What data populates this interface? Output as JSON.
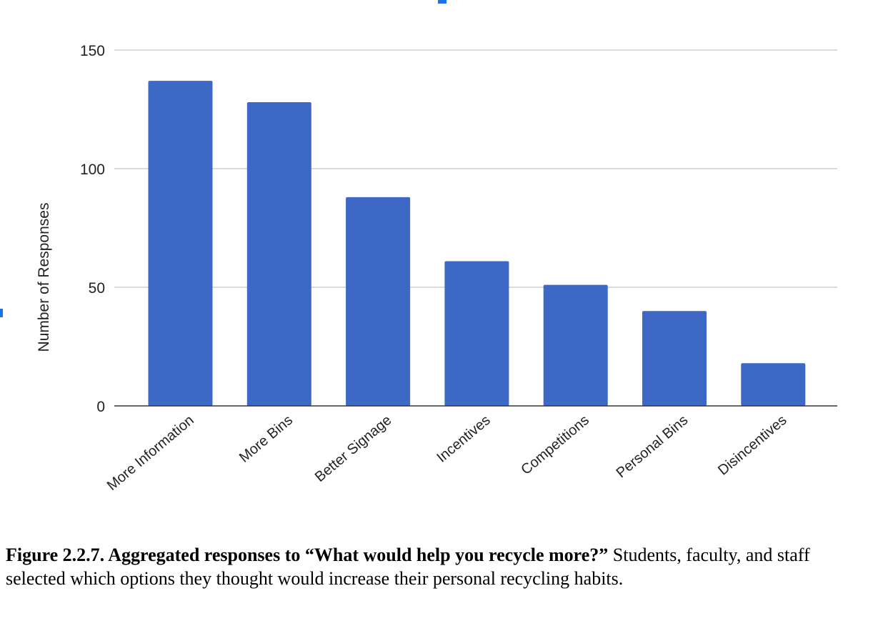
{
  "chart_data": {
    "type": "bar",
    "title": "",
    "xlabel": "",
    "ylabel": "Number of Responses",
    "categories": [
      "More Information",
      "More Bins",
      "Better Signage",
      "Incentives",
      "Competitions",
      "Personal Bins",
      "Disincentives"
    ],
    "values": [
      137,
      128,
      88,
      61,
      51,
      40,
      18
    ],
    "ylim": [
      0,
      150
    ],
    "yticks": [
      0,
      50,
      100,
      150
    ],
    "grid": true,
    "legend": "none",
    "bar_color": "#3d68c6"
  },
  "caption": {
    "bold": "Figure 2.2.7. Aggregated responses to “What would help you recycle more?”",
    "text": " Students, faculty, and staff selected which options they thought would increase their personal recycling habits."
  }
}
